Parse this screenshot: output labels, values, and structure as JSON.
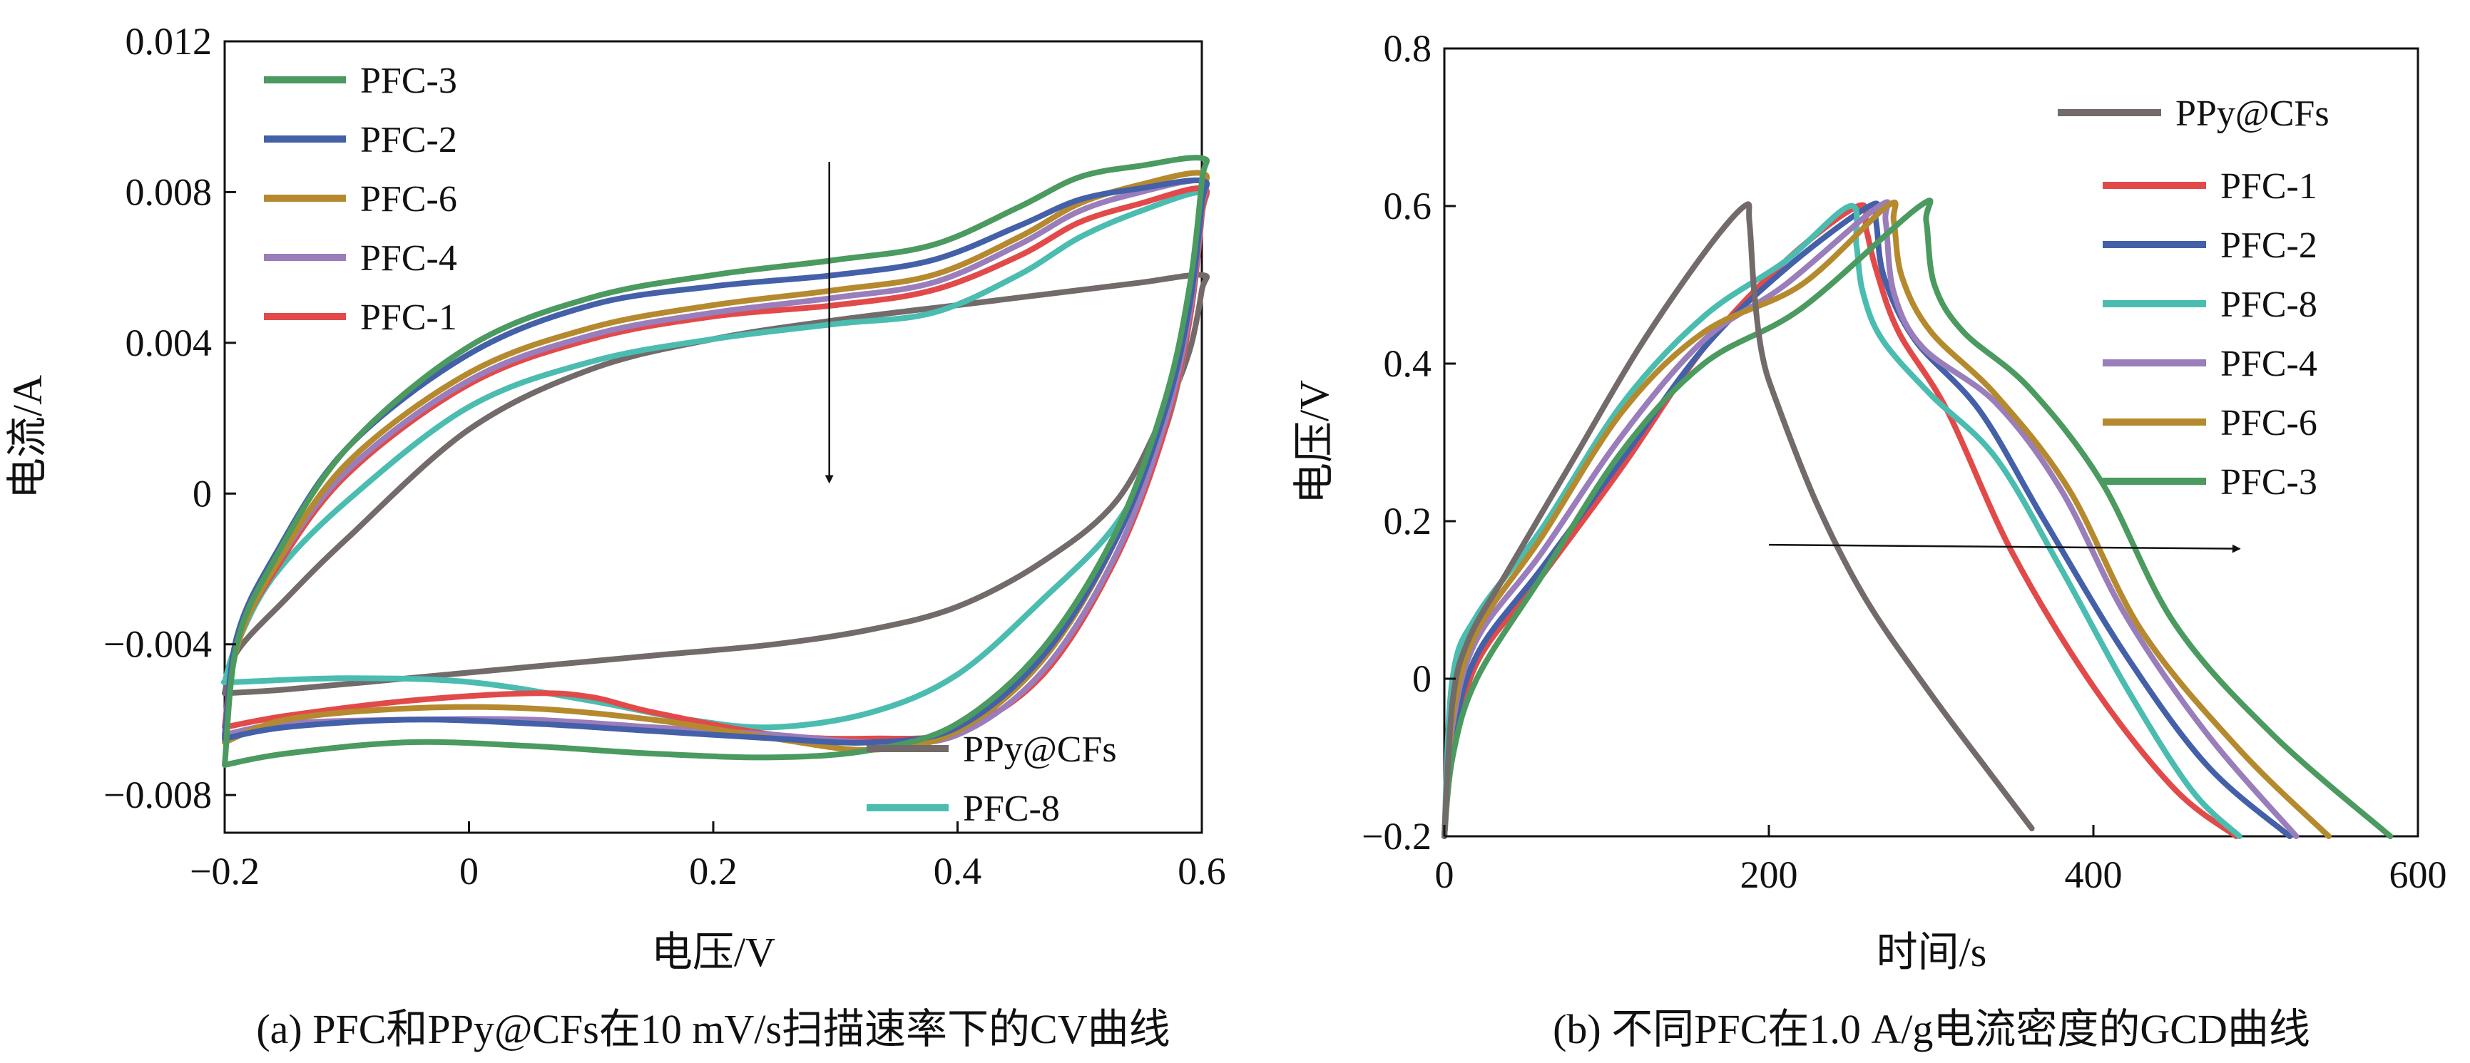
{
  "chart_data": [
    {
      "panel": "a",
      "type": "line",
      "caption": "(a) PFC和PPy@CFs在10 mV/s扫描速率下的CV曲线",
      "xlabel": "电压/V",
      "ylabel": "电流/A",
      "xlim": [
        -0.2,
        0.6
      ],
      "ylim": [
        -0.009,
        0.012
      ],
      "xticks": [
        -0.2,
        0,
        0.2,
        0.4,
        0.6
      ],
      "xtick_labels": [
        "−0.2",
        "0",
        "0.2",
        "0.4",
        "0.6"
      ],
      "yticks": [
        -0.008,
        -0.004,
        0,
        0.004,
        0.008,
        0.012
      ],
      "ytick_labels": [
        "−0.008",
        "−0.004",
        "0",
        "0.004",
        "0.008",
        "0.012"
      ],
      "grid": false,
      "legend_groups": [
        {
          "placement": "top-left",
          "entries": [
            "PFC-3",
            "PFC-2",
            "PFC-6",
            "PFC-4",
            "PFC-1"
          ]
        },
        {
          "placement": "bottom-right",
          "entries": [
            "PPy@CFs",
            "PFC-8"
          ]
        }
      ],
      "arrow": {
        "from": [
          0.295,
          0.0088
        ],
        "to": [
          0.295,
          0.0003
        ]
      },
      "series": [
        {
          "name": "PFC-3",
          "color": "#4b9a5f",
          "x": [
            -0.2,
            -0.19,
            -0.16,
            -0.1,
            0.0,
            0.1,
            0.2,
            0.3,
            0.38,
            0.45,
            0.5,
            0.55,
            0.6,
            0.6,
            0.59,
            0.57,
            0.53,
            0.47,
            0.4,
            0.33,
            0.25,
            0.15,
            0.05,
            -0.05,
            -0.15,
            -0.2
          ],
          "y": [
            -0.0072,
            -0.004,
            -0.0018,
            0.0012,
            0.0039,
            0.0052,
            0.0058,
            0.0062,
            0.0066,
            0.0076,
            0.0084,
            0.0087,
            0.0089,
            0.0083,
            0.0055,
            0.0025,
            -0.001,
            -0.0041,
            -0.0061,
            -0.0068,
            -0.007,
            -0.0069,
            -0.0067,
            -0.0066,
            -0.0069,
            -0.0072
          ]
        },
        {
          "name": "PFC-2",
          "color": "#4460a8",
          "x": [
            -0.2,
            -0.19,
            -0.16,
            -0.1,
            0.0,
            0.1,
            0.2,
            0.3,
            0.38,
            0.45,
            0.5,
            0.55,
            0.6,
            0.6,
            0.59,
            0.57,
            0.53,
            0.47,
            0.4,
            0.33,
            0.25,
            0.15,
            0.05,
            -0.05,
            -0.15,
            -0.2
          ],
          "y": [
            -0.0065,
            -0.0038,
            -0.0017,
            0.0012,
            0.0037,
            0.005,
            0.0055,
            0.0058,
            0.0062,
            0.0071,
            0.0078,
            0.0081,
            0.0083,
            0.0077,
            0.005,
            0.0022,
            -0.0012,
            -0.0043,
            -0.0062,
            -0.0066,
            -0.0065,
            -0.0063,
            -0.0061,
            -0.006,
            -0.0062,
            -0.0065
          ]
        },
        {
          "name": "PFC-6",
          "color": "#b58a2e",
          "x": [
            -0.2,
            -0.19,
            -0.16,
            -0.1,
            0.0,
            0.1,
            0.2,
            0.3,
            0.38,
            0.45,
            0.5,
            0.55,
            0.6,
            0.6,
            0.59,
            0.57,
            0.53,
            0.47,
            0.4,
            0.33,
            0.25,
            0.15,
            0.05,
            -0.05,
            -0.15,
            -0.2
          ],
          "y": [
            -0.0066,
            -0.0041,
            -0.002,
            0.0008,
            0.0032,
            0.0044,
            0.005,
            0.0054,
            0.0058,
            0.0068,
            0.0077,
            0.0082,
            0.0085,
            0.0078,
            0.0052,
            0.0024,
            -0.0012,
            -0.0044,
            -0.0063,
            -0.0068,
            -0.0065,
            -0.006,
            -0.0057,
            -0.0057,
            -0.006,
            -0.0066
          ]
        },
        {
          "name": "PFC-4",
          "color": "#9a7dbb",
          "x": [
            -0.2,
            -0.19,
            -0.16,
            -0.1,
            0.0,
            0.1,
            0.2,
            0.3,
            0.38,
            0.45,
            0.5,
            0.55,
            0.6,
            0.6,
            0.59,
            0.57,
            0.53,
            0.47,
            0.4,
            0.33,
            0.25,
            0.15,
            0.05,
            -0.05,
            -0.15,
            -0.2
          ],
          "y": [
            -0.0064,
            -0.004,
            -0.002,
            0.0006,
            0.003,
            0.0042,
            0.0048,
            0.0052,
            0.0056,
            0.0066,
            0.0075,
            0.008,
            0.0083,
            0.0076,
            0.0048,
            0.0019,
            -0.0016,
            -0.0047,
            -0.0064,
            -0.0066,
            -0.0064,
            -0.0062,
            -0.006,
            -0.006,
            -0.0061,
            -0.0064
          ]
        },
        {
          "name": "PFC-1",
          "color": "#e24a4a",
          "x": [
            -0.2,
            -0.19,
            -0.16,
            -0.1,
            0.0,
            0.1,
            0.2,
            0.3,
            0.38,
            0.45,
            0.5,
            0.55,
            0.6,
            0.6,
            0.59,
            0.57,
            0.53,
            0.47,
            0.4,
            0.33,
            0.25,
            0.15,
            0.1,
            0.05,
            -0.05,
            -0.15,
            -0.2
          ],
          "y": [
            -0.0062,
            -0.004,
            -0.0021,
            0.0005,
            0.0029,
            0.0041,
            0.0047,
            0.005,
            0.0054,
            0.0063,
            0.0072,
            0.0077,
            0.0081,
            0.0074,
            0.0046,
            0.0017,
            -0.0017,
            -0.0048,
            -0.0063,
            -0.0065,
            -0.0064,
            -0.0058,
            -0.0054,
            -0.0053,
            -0.0055,
            -0.0059,
            -0.0062
          ]
        },
        {
          "name": "PPy@CFs",
          "color": "#736a6a",
          "x": [
            -0.2,
            -0.19,
            -0.15,
            -0.1,
            0.0,
            0.1,
            0.2,
            0.3,
            0.4,
            0.5,
            0.55,
            0.6,
            0.6,
            0.59,
            0.57,
            0.53,
            0.47,
            0.4,
            0.33,
            0.25,
            0.15,
            0.05,
            -0.05,
            -0.15,
            -0.2
          ],
          "y": [
            -0.0053,
            -0.0042,
            -0.0028,
            -0.0012,
            0.0017,
            0.0033,
            0.0041,
            0.0046,
            0.005,
            0.0054,
            0.0056,
            0.0058,
            0.0054,
            0.0038,
            0.0022,
            -0.0002,
            -0.0018,
            -0.003,
            -0.0036,
            -0.004,
            -0.0043,
            -0.0046,
            -0.0049,
            -0.0052,
            -0.0053
          ]
        },
        {
          "name": "PFC-8",
          "color": "#4bbcb0",
          "x": [
            -0.2,
            -0.19,
            -0.16,
            -0.1,
            0.0,
            0.1,
            0.2,
            0.3,
            0.38,
            0.45,
            0.5,
            0.55,
            0.6,
            0.6,
            0.59,
            0.57,
            0.53,
            0.47,
            0.4,
            0.33,
            0.25,
            0.18,
            0.1,
            0.0,
            -0.1,
            -0.19,
            -0.2
          ],
          "y": [
            -0.005,
            -0.004,
            -0.0022,
            -0.0002,
            0.0023,
            0.0035,
            0.0041,
            0.0045,
            0.0048,
            0.0058,
            0.0068,
            0.0075,
            0.008,
            0.0074,
            0.0046,
            0.0017,
            -0.0008,
            -0.0028,
            -0.0048,
            -0.0058,
            -0.0062,
            -0.006,
            -0.0055,
            -0.005,
            -0.0049,
            -0.005,
            -0.005
          ]
        }
      ]
    },
    {
      "panel": "b",
      "type": "line",
      "caption": "(b) 不同PFC在1.0 A/g电流密度的GCD曲线",
      "xlabel": "时间/s",
      "ylabel": "电压/V",
      "xlim": [
        0,
        600
      ],
      "ylim": [
        -0.2,
        0.8
      ],
      "xticks": [
        0,
        200,
        400,
        600
      ],
      "xtick_labels": [
        "0",
        "200",
        "400",
        "600"
      ],
      "yticks": [
        -0.2,
        0,
        0.2,
        0.4,
        0.6,
        0.8
      ],
      "ytick_labels": [
        "−0.2",
        "0",
        "0.2",
        "0.4",
        "0.6",
        "0.8"
      ],
      "grid": false,
      "legend_groups": [
        {
          "placement": "top-right",
          "entries": [
            "PPy@CFs"
          ]
        },
        {
          "placement": "right",
          "entries": [
            "PFC-1",
            "PFC-2",
            "PFC-8",
            "PFC-4",
            "PFC-6",
            "PFC-3"
          ]
        }
      ],
      "arrow": {
        "from": [
          200,
          0.17
        ],
        "to": [
          490,
          0.165
        ]
      },
      "series": [
        {
          "name": "PPy@CFs",
          "color": "#736a6a",
          "x": [
            0,
            5,
            15,
            40,
            80,
            120,
            160,
            185,
            188,
            191,
            196,
            205,
            230,
            260,
            300,
            340,
            362
          ],
          "y": [
            -0.2,
            -0.03,
            0.05,
            0.14,
            0.28,
            0.42,
            0.54,
            0.6,
            0.58,
            0.49,
            0.41,
            0.35,
            0.22,
            0.1,
            -0.02,
            -0.13,
            -0.19
          ]
        },
        {
          "name": "PFC-1",
          "color": "#e24a4a",
          "x": [
            0,
            5,
            20,
            60,
            110,
            160,
            210,
            255,
            260,
            266,
            280,
            310,
            350,
            400,
            450,
            488
          ],
          "y": [
            -0.2,
            -0.1,
            0.02,
            0.13,
            0.27,
            0.42,
            0.53,
            0.6,
            0.57,
            0.52,
            0.44,
            0.34,
            0.16,
            -0.01,
            -0.14,
            -0.2
          ]
        },
        {
          "name": "PFC-2",
          "color": "#4460a8",
          "x": [
            0,
            5,
            20,
            60,
            110,
            160,
            210,
            262,
            266,
            271,
            290,
            330,
            370,
            420,
            470,
            521
          ],
          "y": [
            -0.2,
            -0.08,
            0.03,
            0.14,
            0.28,
            0.42,
            0.52,
            0.6,
            0.58,
            0.51,
            0.43,
            0.34,
            0.2,
            0.03,
            -0.11,
            -0.2
          ]
        },
        {
          "name": "PFC-8",
          "color": "#4bbcb0",
          "x": [
            0,
            5,
            20,
            60,
            110,
            160,
            210,
            250,
            254,
            258,
            270,
            300,
            340,
            380,
            420,
            460,
            490
          ],
          "y": [
            -0.2,
            0.0,
            0.08,
            0.19,
            0.35,
            0.46,
            0.53,
            0.6,
            0.55,
            0.49,
            0.43,
            0.36,
            0.28,
            0.14,
            -0.01,
            -0.14,
            -0.2
          ]
        },
        {
          "name": "PFC-4",
          "color": "#9a7dbb",
          "x": [
            0,
            5,
            20,
            60,
            110,
            160,
            210,
            268,
            272,
            277,
            295,
            340,
            380,
            420,
            470,
            525
          ],
          "y": [
            -0.2,
            -0.06,
            0.05,
            0.16,
            0.31,
            0.43,
            0.5,
            0.6,
            0.58,
            0.49,
            0.42,
            0.35,
            0.24,
            0.08,
            -0.07,
            -0.2
          ]
        },
        {
          "name": "PFC-6",
          "color": "#b58a2e",
          "x": [
            0,
            5,
            20,
            60,
            110,
            160,
            220,
            273,
            277,
            282,
            300,
            340,
            385,
            430,
            490,
            545
          ],
          "y": [
            -0.2,
            -0.05,
            0.06,
            0.18,
            0.34,
            0.44,
            0.5,
            0.6,
            0.58,
            0.51,
            0.44,
            0.36,
            0.24,
            0.06,
            -0.09,
            -0.2
          ]
        },
        {
          "name": "PFC-3",
          "color": "#4b9a5f",
          "x": [
            0,
            5,
            20,
            60,
            110,
            160,
            220,
            293,
            297,
            302,
            320,
            360,
            405,
            450,
            510,
            583
          ],
          "y": [
            -0.2,
            -0.1,
            0.0,
            0.13,
            0.29,
            0.4,
            0.47,
            0.6,
            0.58,
            0.5,
            0.44,
            0.37,
            0.25,
            0.07,
            -0.07,
            -0.2
          ]
        }
      ]
    }
  ]
}
